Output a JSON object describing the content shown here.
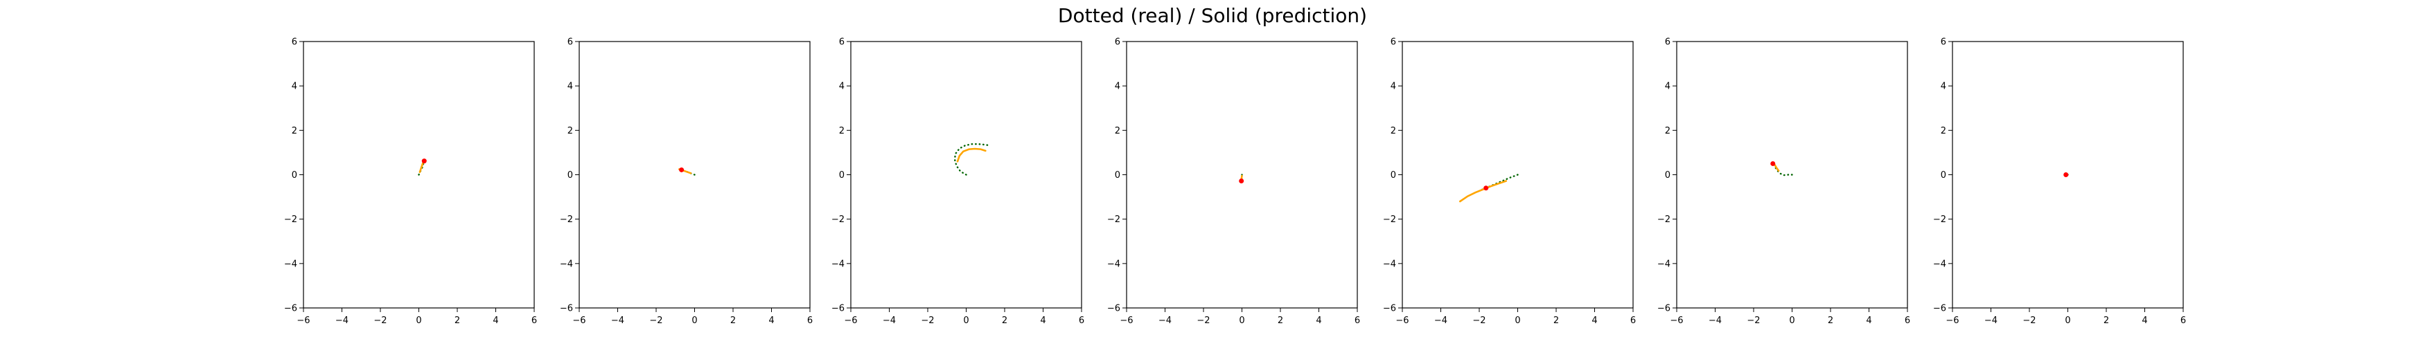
{
  "title": "Dotted (real) / Solid (prediction)",
  "colors": {
    "real": "#006400",
    "prediction": "#FFA500",
    "marker": "#FF0000",
    "frame": "#000000"
  },
  "chart_data": [
    {
      "type": "line",
      "xlim": [
        -6,
        6
      ],
      "ylim": [
        -6,
        6
      ],
      "xticks": [
        -6,
        -4,
        -2,
        0,
        2,
        4,
        6
      ],
      "yticks": [
        -6,
        -4,
        -2,
        0,
        2,
        4,
        6
      ],
      "xtick_labels": [
        "−6",
        "−4",
        "−2",
        "0",
        "2",
        "4",
        "6"
      ],
      "ytick_labels": [
        "−6",
        "−4",
        "−2",
        "0",
        "2",
        "4",
        "6"
      ],
      "grid": false,
      "series": [
        {
          "style": "dotted",
          "role": "real",
          "x": [
            0.0,
            0.05,
            0.12,
            0.18,
            0.22,
            0.25,
            0.28,
            0.3
          ],
          "y": [
            0.0,
            0.1,
            0.22,
            0.33,
            0.44,
            0.53,
            0.62,
            0.7
          ]
        },
        {
          "style": "solid",
          "role": "prediction",
          "x": [
            0.05,
            0.1,
            0.15,
            0.2,
            0.25,
            0.3
          ],
          "y": [
            0.12,
            0.25,
            0.38,
            0.5,
            0.6,
            0.68
          ]
        }
      ],
      "marker": {
        "x": 0.28,
        "y": 0.62
      }
    },
    {
      "type": "line",
      "xlim": [
        -6,
        6
      ],
      "ylim": [
        -6,
        6
      ],
      "xticks": [
        -6,
        -4,
        -2,
        0,
        2,
        4,
        6
      ],
      "yticks": [
        -6,
        -4,
        -2,
        0,
        2,
        4,
        6
      ],
      "xtick_labels": [
        "−6",
        "−4",
        "−2",
        "0",
        "2",
        "4",
        "6"
      ],
      "ytick_labels": [
        "−6",
        "−4",
        "−2",
        "0",
        "2",
        "4",
        "6"
      ],
      "grid": false,
      "series": [
        {
          "style": "dotted",
          "role": "real",
          "x": [
            0.0,
            -0.15,
            -0.3,
            -0.45,
            -0.6,
            -0.72,
            -0.82
          ],
          "y": [
            0.0,
            0.05,
            0.1,
            0.15,
            0.19,
            0.22,
            0.25
          ]
        },
        {
          "style": "solid",
          "role": "prediction",
          "x": [
            -0.2,
            -0.4,
            -0.6,
            -0.8
          ],
          "y": [
            0.07,
            0.13,
            0.19,
            0.25
          ]
        }
      ],
      "marker": {
        "x": -0.68,
        "y": 0.22
      }
    },
    {
      "type": "line",
      "xlim": [
        -6,
        6
      ],
      "ylim": [
        -6,
        6
      ],
      "xticks": [
        -6,
        -4,
        -2,
        0,
        2,
        4,
        6
      ],
      "yticks": [
        -6,
        -4,
        -2,
        0,
        2,
        4,
        6
      ],
      "xtick_labels": [
        "−6",
        "−4",
        "−2",
        "0",
        "2",
        "4",
        "6"
      ],
      "ytick_labels": [
        "−6",
        "−4",
        "−2",
        "0",
        "2",
        "4",
        "6"
      ],
      "grid": false,
      "series": [
        {
          "style": "dotted",
          "role": "real",
          "x": [
            0.0,
            -0.3,
            -0.5,
            -0.6,
            -0.55,
            -0.35,
            -0.05,
            0.3,
            0.65,
            1.0,
            1.2
          ],
          "y": [
            0.0,
            0.15,
            0.4,
            0.7,
            0.95,
            1.18,
            1.32,
            1.38,
            1.38,
            1.35,
            1.32
          ]
        },
        {
          "style": "solid",
          "role": "prediction",
          "x": [
            -0.45,
            -0.35,
            -0.15,
            0.15,
            0.45,
            0.75,
            1.0
          ],
          "y": [
            0.6,
            0.85,
            1.05,
            1.15,
            1.17,
            1.15,
            1.08
          ]
        }
      ]
    },
    {
      "type": "line",
      "xlim": [
        -6,
        6
      ],
      "ylim": [
        -6,
        6
      ],
      "xticks": [
        -6,
        -4,
        -2,
        0,
        2,
        4,
        6
      ],
      "yticks": [
        -6,
        -4,
        -2,
        0,
        2,
        4,
        6
      ],
      "xtick_labels": [
        "−6",
        "−4",
        "−2",
        "0",
        "2",
        "4",
        "6"
      ],
      "ytick_labels": [
        "−6",
        "−4",
        "−2",
        "0",
        "2",
        "4",
        "6"
      ],
      "grid": false,
      "series": [
        {
          "style": "dotted",
          "role": "real",
          "x": [
            0.0,
            0.0,
            -0.02,
            -0.03
          ],
          "y": [
            0.0,
            -0.1,
            -0.2,
            -0.3
          ]
        },
        {
          "style": "solid",
          "role": "prediction",
          "x": [
            0.0,
            -0.02,
            -0.04
          ],
          "y": [
            -0.05,
            -0.15,
            -0.25
          ]
        }
      ],
      "marker": {
        "x": -0.03,
        "y": -0.28
      }
    },
    {
      "type": "line",
      "xlim": [
        -6,
        6
      ],
      "ylim": [
        -6,
        6
      ],
      "xticks": [
        -6,
        -4,
        -2,
        0,
        2,
        4,
        6
      ],
      "yticks": [
        -6,
        -4,
        -2,
        0,
        2,
        4,
        6
      ],
      "xtick_labels": [
        "−6",
        "−4",
        "−2",
        "0",
        "2",
        "4",
        "6"
      ],
      "ytick_labels": [
        "−6",
        "−4",
        "−2",
        "0",
        "2",
        "4",
        "6"
      ],
      "grid": false,
      "series": [
        {
          "style": "dotted",
          "role": "real",
          "x": [
            0.0,
            -0.4,
            -0.8,
            -1.2,
            -1.6,
            -2.0
          ],
          "y": [
            0.0,
            -0.13,
            -0.28,
            -0.43,
            -0.58,
            -0.72
          ]
        },
        {
          "style": "solid",
          "role": "prediction",
          "x": [
            -0.6,
            -1.0,
            -1.4,
            -1.8,
            -2.2,
            -2.6,
            -3.0
          ],
          "y": [
            -0.28,
            -0.4,
            -0.52,
            -0.66,
            -0.8,
            -0.97,
            -1.2
          ]
        }
      ],
      "marker": {
        "x": -1.65,
        "y": -0.6
      }
    },
    {
      "type": "line",
      "xlim": [
        -6,
        6
      ],
      "ylim": [
        -6,
        6
      ],
      "xticks": [
        -6,
        -4,
        -2,
        0,
        2,
        4,
        6
      ],
      "yticks": [
        -6,
        -4,
        -2,
        0,
        2,
        4,
        6
      ],
      "xtick_labels": [
        "−6",
        "−4",
        "−2",
        "0",
        "2",
        "4",
        "6"
      ],
      "ytick_labels": [
        "−6",
        "−4",
        "−2",
        "0",
        "2",
        "4",
        "6"
      ],
      "grid": false,
      "series": [
        {
          "style": "dotted",
          "role": "real",
          "x": [
            0.0,
            -0.2,
            -0.42,
            -0.6,
            -0.75,
            -0.85,
            -0.95
          ],
          "y": [
            0.0,
            0.0,
            -0.02,
            0.05,
            0.17,
            0.3,
            0.45
          ]
        },
        {
          "style": "solid",
          "role": "prediction",
          "x": [
            -0.7,
            -0.8,
            -0.9
          ],
          "y": [
            0.18,
            0.3,
            0.45
          ]
        }
      ],
      "marker": {
        "x": -1.0,
        "y": 0.5
      }
    },
    {
      "type": "line",
      "xlim": [
        -6,
        6
      ],
      "ylim": [
        -6,
        6
      ],
      "xticks": [
        -6,
        -4,
        -2,
        0,
        2,
        4,
        6
      ],
      "yticks": [
        -6,
        -4,
        -2,
        0,
        2,
        4,
        6
      ],
      "xtick_labels": [
        "−6",
        "−4",
        "−2",
        "0",
        "2",
        "4",
        "6"
      ],
      "ytick_labels": [
        "−6",
        "−4",
        "−2",
        "0",
        "2",
        "4",
        "6"
      ],
      "grid": false,
      "series": [
        {
          "style": "dotted",
          "role": "real",
          "x": [
            0.0,
            -0.05,
            -0.1
          ],
          "y": [
            0.0,
            0.0,
            0.0
          ]
        },
        {
          "style": "solid",
          "role": "prediction",
          "x": [
            -0.05,
            -0.12
          ],
          "y": [
            0.0,
            0.0
          ]
        }
      ],
      "marker": {
        "x": -0.1,
        "y": 0.0
      }
    }
  ]
}
